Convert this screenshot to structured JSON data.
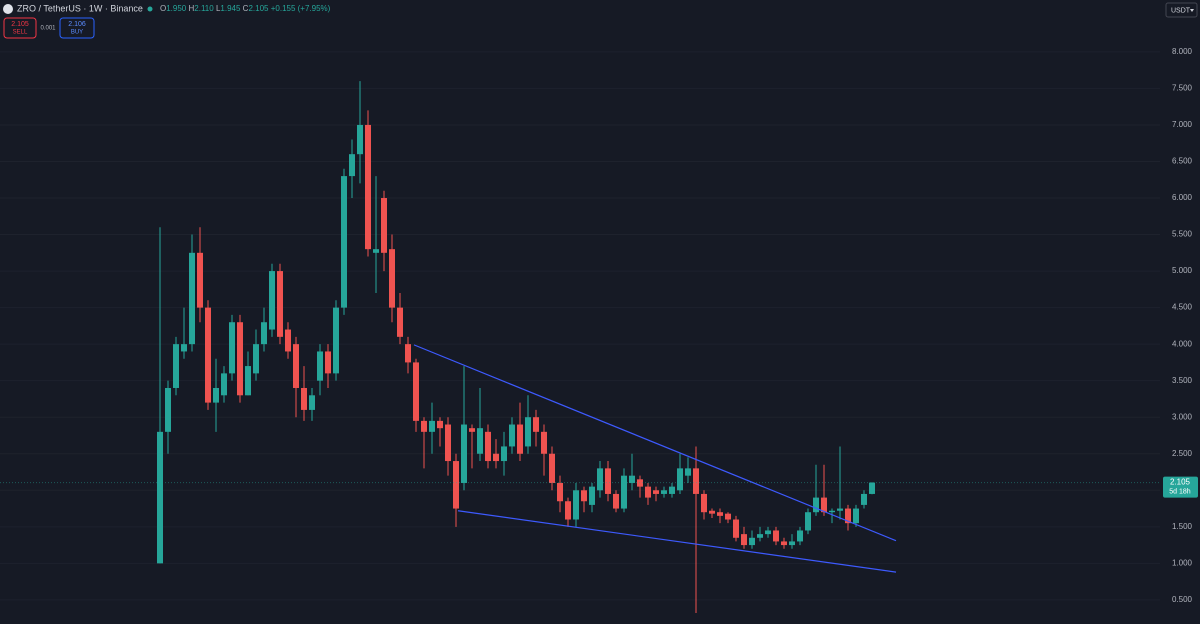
{
  "header": {
    "symbol": "ZRO / TetherUS · 1W · Binance",
    "ohlc": [
      {
        "key": "O",
        "value": "1.950"
      },
      {
        "key": "H",
        "value": "2.110"
      },
      {
        "key": "L",
        "value": "1.945"
      },
      {
        "key": "C",
        "value": "2.105"
      }
    ],
    "change": "+0.155 (+7.95%)"
  },
  "trade": {
    "sell_price": "2.105",
    "sell": "SELL",
    "spread": "0.001",
    "buy_price": "2.106",
    "buy": "BUY"
  },
  "currency": "USDT",
  "chart_data": {
    "type": "candlestick",
    "up_color": "#26a69a",
    "down_color": "#ef5350",
    "open": [
      1.0,
      2.8,
      3.4,
      3.9,
      4.0,
      5.25,
      4.5,
      3.2,
      3.3,
      3.6,
      4.3,
      3.3,
      3.6,
      4.0,
      4.2,
      5.0,
      4.2,
      4.0,
      3.4,
      3.1,
      3.5,
      3.9,
      3.6,
      4.5,
      6.3,
      6.6,
      7.0,
      5.25,
      6.0,
      5.3,
      4.5,
      4.0,
      3.75,
      2.95,
      2.8,
      2.95,
      2.9,
      2.4,
      2.1,
      2.85,
      2.5,
      2.8,
      2.5,
      2.4,
      2.6,
      2.9,
      2.6,
      3.0,
      2.8,
      2.5,
      2.1,
      1.85,
      1.6,
      2.0,
      1.8,
      2.0,
      2.3,
      1.95,
      1.75,
      2.1,
      2.15,
      2.05,
      2.0,
      1.95,
      1.95,
      2.0,
      2.2,
      2.3,
      1.95,
      1.72,
      1.7,
      1.68,
      1.6,
      1.4,
      1.25,
      1.35,
      1.4,
      1.45,
      1.3,
      1.25,
      1.3,
      1.45,
      1.7,
      1.9,
      1.7,
      1.72,
      1.75,
      1.55,
      1.8,
      1.95
    ],
    "high": [
      5.6,
      3.5,
      4.1,
      4.5,
      5.5,
      5.6,
      4.6,
      3.8,
      3.7,
      4.4,
      4.4,
      3.9,
      4.2,
      4.5,
      5.1,
      5.1,
      4.3,
      4.1,
      3.7,
      3.4,
      4.0,
      4.0,
      4.6,
      6.4,
      6.8,
      7.6,
      7.2,
      6.3,
      6.1,
      5.5,
      4.7,
      4.1,
      3.8,
      3.0,
      3.2,
      3.0,
      3.0,
      2.5,
      3.7,
      2.9,
      3.4,
      2.9,
      2.7,
      2.8,
      3.0,
      3.2,
      3.3,
      3.1,
      2.9,
      2.6,
      2.2,
      1.9,
      2.1,
      2.05,
      2.1,
      2.4,
      2.4,
      2.0,
      2.3,
      2.5,
      2.2,
      2.1,
      2.05,
      2.05,
      2.1,
      2.5,
      2.45,
      2.6,
      2.0,
      1.75,
      1.75,
      1.7,
      1.65,
      1.5,
      1.45,
      1.5,
      1.5,
      1.5,
      1.35,
      1.4,
      1.5,
      1.75,
      2.35,
      2.35,
      1.75,
      2.6,
      1.8,
      1.8,
      2.0,
      2.11
    ],
    "low": [
      1.0,
      2.5,
      3.3,
      3.8,
      3.9,
      4.3,
      3.1,
      2.8,
      3.2,
      3.5,
      3.2,
      3.3,
      3.5,
      3.9,
      4.1,
      4.0,
      3.8,
      3.0,
      2.95,
      2.95,
      3.3,
      3.4,
      3.5,
      4.4,
      6.0,
      6.2,
      5.2,
      4.7,
      5.0,
      4.3,
      4.0,
      3.6,
      2.8,
      2.3,
      2.5,
      2.6,
      2.2,
      1.5,
      2.0,
      2.3,
      2.4,
      2.3,
      2.3,
      2.2,
      2.5,
      2.4,
      2.5,
      2.6,
      2.2,
      2.0,
      1.7,
      1.5,
      1.5,
      1.7,
      1.7,
      1.9,
      1.85,
      1.7,
      1.7,
      2.0,
      1.9,
      1.8,
      1.85,
      1.9,
      1.9,
      1.95,
      2.1,
      0.32,
      1.6,
      1.62,
      1.55,
      1.55,
      1.3,
      1.2,
      1.2,
      1.3,
      1.35,
      1.25,
      1.2,
      1.2,
      1.25,
      1.4,
      1.65,
      1.65,
      1.55,
      1.6,
      1.45,
      1.5,
      1.75,
      1.945
    ],
    "close": [
      2.8,
      3.4,
      4.0,
      4.0,
      5.25,
      4.5,
      3.2,
      3.4,
      3.6,
      4.3,
      3.3,
      3.7,
      4.0,
      4.3,
      5.0,
      4.1,
      3.9,
      3.4,
      3.1,
      3.3,
      3.9,
      3.6,
      4.5,
      6.3,
      6.6,
      7.0,
      5.3,
      5.3,
      5.25,
      4.5,
      4.1,
      3.75,
      2.95,
      2.8,
      2.95,
      2.85,
      2.4,
      1.75,
      2.9,
      2.8,
      2.85,
      2.4,
      2.4,
      2.6,
      2.9,
      2.5,
      3.0,
      2.8,
      2.5,
      2.1,
      1.85,
      1.6,
      2.0,
      1.85,
      2.05,
      2.3,
      1.95,
      1.75,
      2.2,
      2.2,
      2.05,
      1.9,
      1.95,
      2.0,
      2.05,
      2.3,
      2.3,
      1.95,
      1.7,
      1.68,
      1.65,
      1.6,
      1.35,
      1.25,
      1.35,
      1.4,
      1.45,
      1.3,
      1.25,
      1.3,
      1.45,
      1.7,
      1.9,
      1.7,
      1.72,
      1.75,
      1.55,
      1.75,
      1.95,
      2.105
    ],
    "trendlines": [
      {
        "color": "#3d5afe",
        "values": [
          3.99,
          1.31
        ]
      },
      {
        "color": "#3d5afe",
        "values": [
          1.72,
          0.88
        ]
      }
    ],
    "last_price": 2.105,
    "countdown": "5d 18h",
    "ylim": [
      0.17,
      8.71
    ],
    "yticks": [
      {
        "value": 0.5,
        "label": "0.500"
      },
      {
        "value": 1.0,
        "label": "1.000"
      },
      {
        "value": 1.5,
        "label": "1.500"
      },
      {
        "value": 2.0,
        "label": "2.000"
      },
      {
        "value": 2.5,
        "label": "2.500"
      },
      {
        "value": 3.0,
        "label": "3.000"
      },
      {
        "value": 3.5,
        "label": "3.500"
      },
      {
        "value": 4.0,
        "label": "4.000"
      },
      {
        "value": 4.5,
        "label": "4.500"
      },
      {
        "value": 5.0,
        "label": "5.000"
      },
      {
        "value": 5.5,
        "label": "5.500"
      },
      {
        "value": 6.0,
        "label": "6.000"
      },
      {
        "value": 6.5,
        "label": "6.500"
      },
      {
        "value": 7.0,
        "label": "7.000"
      },
      {
        "value": 7.5,
        "label": "7.500"
      },
      {
        "value": 8.0,
        "label": "8.000"
      }
    ],
    "grid": true
  }
}
